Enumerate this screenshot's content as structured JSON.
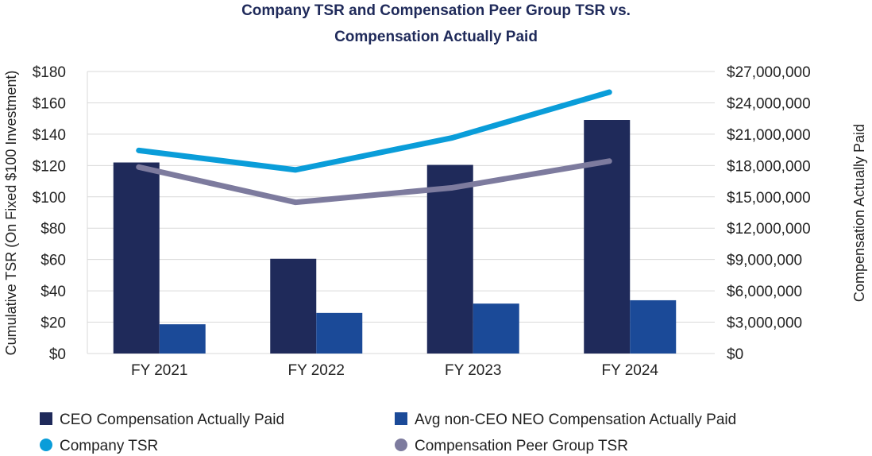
{
  "chart_data": {
    "type": "bar",
    "title": [
      "Company TSR and Compensation Peer Group TSR vs.",
      "Compensation Actually Paid"
    ],
    "categories": [
      "FY 2021",
      "FY 2022",
      "FY 2023",
      "FY 2024"
    ],
    "ylabel": "Cumulative TSR (On Fixed $100 Investment)",
    "y2label": "Compensation Actually Paid",
    "ylim": [
      0,
      180
    ],
    "y2lim": [
      0,
      27000000
    ],
    "yticks": [
      "$0",
      "$20",
      "$40",
      "$60",
      "$80",
      "$100",
      "$120",
      "$140",
      "$160",
      "$180"
    ],
    "y2ticks": [
      "$0",
      "$3,000,000",
      "$6,000,000",
      "$9,000,000",
      "$12,000,000",
      "$15,000,000",
      "$18,000,000",
      "$21,000,000",
      "$24,000,000",
      "$27,000,000"
    ],
    "grid": true,
    "legend_placement": "bottom",
    "series": [
      {
        "name": "CEO Compensation Actually Paid",
        "kind": "bar",
        "axis": "right",
        "color": "#1f2a5a",
        "values": [
          18290000,
          9070000,
          18060000,
          22360000
        ]
      },
      {
        "name": "Avg non-CEO NEO Compensation Actually Paid",
        "kind": "bar",
        "axis": "right",
        "color": "#1b4a98",
        "values": [
          2800000,
          3890000,
          4780000,
          5100000
        ]
      },
      {
        "name": "Company TSR",
        "kind": "line",
        "axis": "left",
        "color": "#0a9dd9",
        "values": [
          129.6,
          117.2,
          137.7,
          166.8
        ]
      },
      {
        "name": "Compensation Peer Group TSR",
        "kind": "line",
        "axis": "left",
        "color": "#7d7b9e",
        "values": [
          119.0,
          96.5,
          105.8,
          122.8
        ]
      }
    ]
  }
}
